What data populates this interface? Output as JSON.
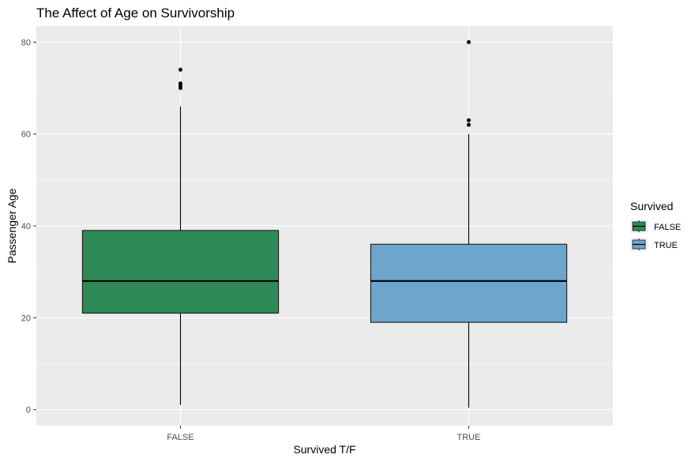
{
  "chart_data": {
    "type": "box",
    "title": "The Affect of Age on Survivorship",
    "xlabel": "Survived T/F",
    "ylabel": "Passenger Age",
    "ylim": [
      -3.5,
      83.5
    ],
    "yticks": [
      0,
      20,
      40,
      60,
      80
    ],
    "categories": [
      "FALSE",
      "TRUE"
    ],
    "boxes": [
      {
        "category": "FALSE",
        "color": "#2E8B57",
        "min": 1,
        "q1": 21,
        "median": 28,
        "q3": 39,
        "max": 66,
        "outliers": [
          70,
          70.5,
          71,
          74
        ]
      },
      {
        "category": "TRUE",
        "color": "#6CA6CD",
        "min": 0.42,
        "q1": 19,
        "median": 28,
        "q3": 36,
        "max": 60,
        "outliers": [
          62,
          63,
          80
        ]
      }
    ],
    "grid": true,
    "legend": {
      "title": "Survived",
      "placement": "right",
      "items": [
        {
          "label": "FALSE",
          "color": "#2E8B57"
        },
        {
          "label": "TRUE",
          "color": "#6CA6CD"
        }
      ]
    }
  }
}
